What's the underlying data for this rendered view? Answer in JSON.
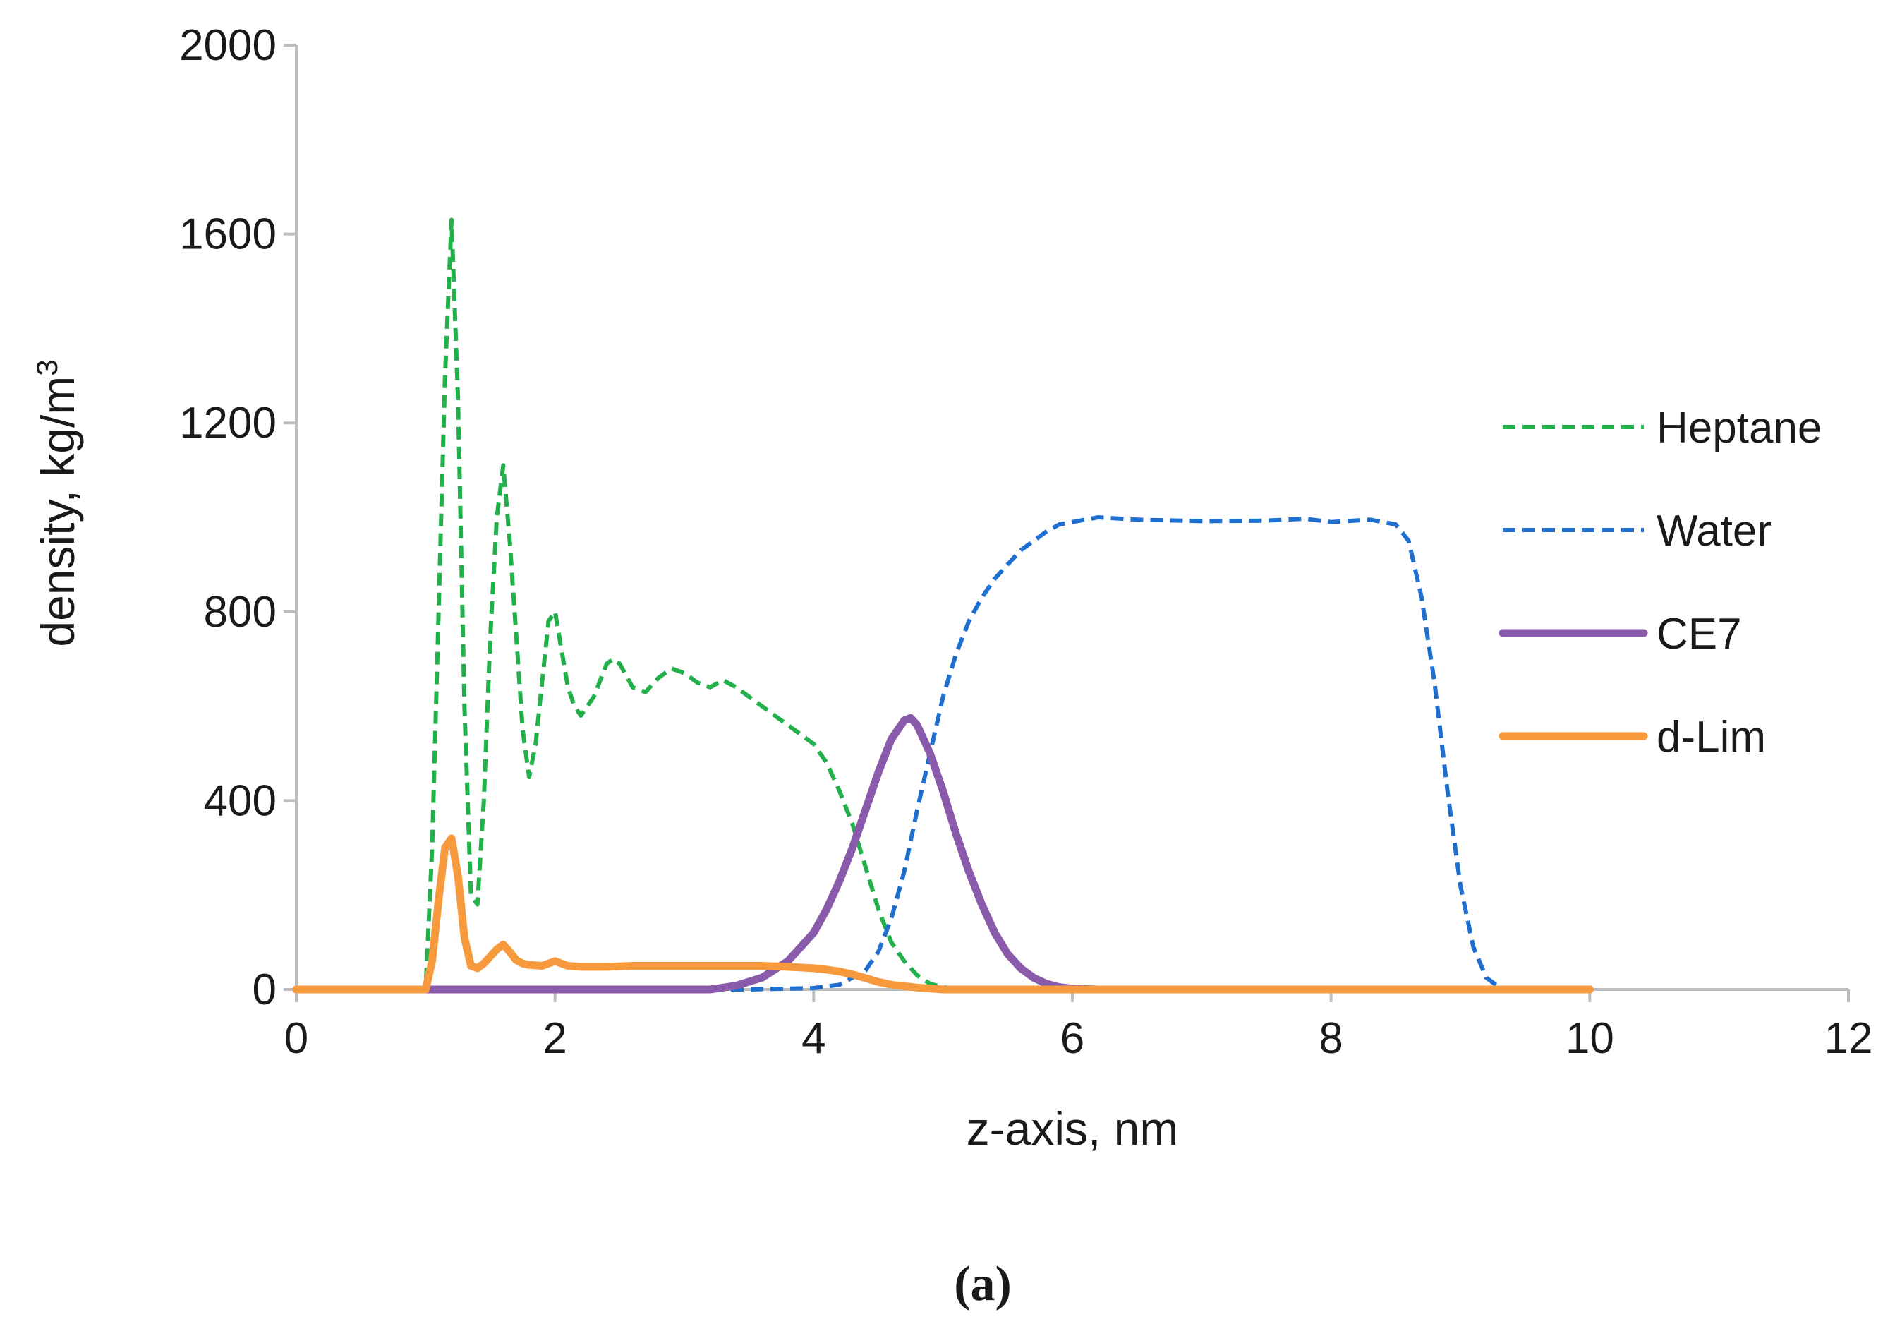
{
  "chart_data": {
    "type": "line",
    "title": "",
    "xlabel": "z-axis, nm",
    "ylabel": "density, kg/m",
    "ylabel_superscript": "3",
    "xlim": [
      0,
      12
    ],
    "ylim": [
      0,
      2000
    ],
    "x_ticks": [
      0,
      2,
      4,
      6,
      8,
      10,
      12
    ],
    "x_tick_labels": [
      "0",
      "2",
      "4",
      "6",
      "8",
      "10",
      "12"
    ],
    "y_ticks": [
      0,
      400,
      800,
      1200,
      1600,
      2000
    ],
    "y_tick_labels": [
      "0",
      "400",
      "800",
      "1200",
      "1600",
      "2000"
    ],
    "grid": false,
    "legend_position": "right",
    "caption": "(a)",
    "series": [
      {
        "name": "Heptane",
        "color": "#22b04b",
        "style": "dashed",
        "x": [
          0,
          1.0,
          1.05,
          1.1,
          1.15,
          1.2,
          1.25,
          1.3,
          1.35,
          1.4,
          1.45,
          1.5,
          1.55,
          1.6,
          1.65,
          1.7,
          1.75,
          1.8,
          1.85,
          1.9,
          1.95,
          2.0,
          2.05,
          2.1,
          2.15,
          2.2,
          2.3,
          2.4,
          2.45,
          2.5,
          2.6,
          2.7,
          2.8,
          2.9,
          3.0,
          3.1,
          3.2,
          3.3,
          3.4,
          3.5,
          3.6,
          3.7,
          3.8,
          3.9,
          4.0,
          4.1,
          4.2,
          4.3,
          4.4,
          4.5,
          4.6,
          4.7,
          4.8,
          4.9,
          5.0,
          5.1,
          5.3,
          10.0
        ],
        "y": [
          0,
          0,
          300,
          800,
          1300,
          1630,
          1250,
          600,
          200,
          180,
          400,
          750,
          1000,
          1110,
          950,
          750,
          550,
          450,
          520,
          650,
          780,
          800,
          720,
          640,
          600,
          580,
          620,
          690,
          700,
          690,
          640,
          630,
          660,
          680,
          670,
          650,
          640,
          655,
          640,
          620,
          600,
          580,
          560,
          540,
          520,
          480,
          420,
          350,
          260,
          170,
          100,
          60,
          30,
          12,
          5,
          2,
          0,
          0
        ]
      },
      {
        "name": "Water",
        "color": "#1f6fd1",
        "style": "dashed",
        "x": [
          0,
          3.5,
          4.0,
          4.2,
          4.4,
          4.5,
          4.6,
          4.7,
          4.8,
          4.9,
          5.0,
          5.1,
          5.2,
          5.3,
          5.4,
          5.5,
          5.6,
          5.7,
          5.8,
          5.9,
          6.0,
          6.2,
          6.5,
          7.0,
          7.5,
          7.8,
          8.0,
          8.3,
          8.5,
          8.6,
          8.7,
          8.8,
          8.9,
          9.0,
          9.1,
          9.2,
          9.3,
          9.4,
          10.0
        ],
        "y": [
          0,
          0,
          3,
          10,
          40,
          80,
          150,
          250,
          380,
          500,
          620,
          710,
          780,
          830,
          870,
          900,
          930,
          950,
          970,
          985,
          990,
          1000,
          995,
          992,
          993,
          997,
          990,
          995,
          985,
          950,
          830,
          650,
          420,
          220,
          90,
          25,
          5,
          0,
          0
        ]
      },
      {
        "name": "CE7",
        "color": "#8a5aab",
        "style": "solid",
        "x": [
          0,
          3.2,
          3.4,
          3.6,
          3.8,
          4.0,
          4.1,
          4.2,
          4.3,
          4.4,
          4.5,
          4.6,
          4.7,
          4.75,
          4.8,
          4.9,
          5.0,
          5.1,
          5.2,
          5.3,
          5.4,
          5.5,
          5.6,
          5.7,
          5.8,
          5.9,
          6.0,
          6.2,
          6.5,
          10.0
        ],
        "y": [
          0,
          0,
          8,
          25,
          60,
          120,
          170,
          230,
          300,
          380,
          460,
          530,
          570,
          575,
          560,
          500,
          420,
          330,
          250,
          180,
          120,
          75,
          45,
          25,
          12,
          5,
          2,
          0,
          0,
          0
        ]
      },
      {
        "name": "d-Lim",
        "color": "#f79a3e",
        "style": "solid",
        "x": [
          0,
          1.0,
          1.05,
          1.1,
          1.15,
          1.2,
          1.25,
          1.3,
          1.35,
          1.4,
          1.45,
          1.5,
          1.55,
          1.6,
          1.65,
          1.7,
          1.75,
          1.8,
          1.9,
          2.0,
          2.1,
          2.2,
          2.4,
          2.6,
          2.8,
          3.0,
          3.2,
          3.4,
          3.6,
          3.8,
          4.0,
          4.1,
          4.2,
          4.3,
          4.4,
          4.5,
          4.6,
          4.8,
          5.0,
          10.0
        ],
        "y": [
          0,
          0,
          60,
          190,
          300,
          320,
          240,
          110,
          50,
          45,
          55,
          70,
          85,
          95,
          80,
          62,
          55,
          52,
          50,
          60,
          50,
          48,
          48,
          50,
          50,
          50,
          50,
          50,
          50,
          48,
          45,
          42,
          38,
          32,
          24,
          16,
          10,
          4,
          0,
          0
        ]
      }
    ]
  }
}
